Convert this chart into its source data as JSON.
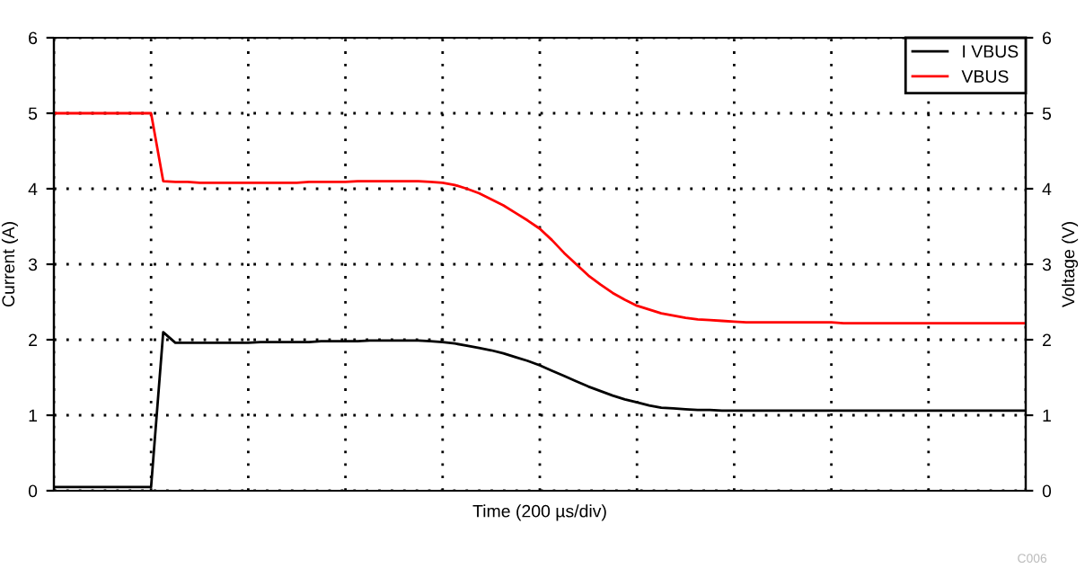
{
  "chart_data": {
    "type": "line",
    "xlabel": "Time (200 µs/div)",
    "ylabel": "Current (A)",
    "y2label": "Voltage (V)",
    "categories": [
      null,
      null,
      null,
      null,
      null,
      null,
      null,
      null,
      null,
      null,
      null,
      null,
      null,
      null,
      null,
      null,
      null,
      null,
      null,
      null,
      null,
      null,
      null,
      null,
      null,
      null,
      null,
      null,
      null,
      null,
      null,
      null,
      null,
      null,
      null,
      null,
      null,
      null,
      null,
      null,
      null,
      null,
      null,
      null,
      null,
      null,
      null,
      null,
      null,
      null,
      null,
      null,
      null,
      null,
      null,
      null,
      null,
      null,
      null,
      null,
      null,
      null,
      null,
      null,
      null,
      null,
      null,
      null,
      null,
      null,
      null,
      null,
      null,
      null,
      null,
      null,
      null,
      null,
      null,
      null,
      null
    ],
    "ylim": [
      0,
      6
    ],
    "yticks": [
      0,
      1,
      2,
      3,
      4,
      5,
      6
    ],
    "y2lim": [
      0,
      6
    ],
    "y2ticks": [
      0,
      1,
      2,
      3,
      4,
      5,
      6
    ],
    "grid": true,
    "legend": "top right",
    "line_style": "solid",
    "marker": "none",
    "annotations": [
      "C006"
    ],
    "series": [
      {
        "name": "I VBUS",
        "color": "#000000",
        "values": [
          0.05,
          0.05,
          0.05,
          0.05,
          0.05,
          0.05,
          0.05,
          0.05,
          0.05,
          2.1,
          1.96,
          1.96,
          1.96,
          1.96,
          1.96,
          1.96,
          1.96,
          1.97,
          1.97,
          1.97,
          1.97,
          1.97,
          1.98,
          1.98,
          1.98,
          1.98,
          1.99,
          1.99,
          1.99,
          1.99,
          1.99,
          1.98,
          1.97,
          1.95,
          1.92,
          1.89,
          1.86,
          1.82,
          1.77,
          1.72,
          1.66,
          1.59,
          1.52,
          1.45,
          1.38,
          1.32,
          1.26,
          1.21,
          1.17,
          1.13,
          1.1,
          1.09,
          1.08,
          1.07,
          1.07,
          1.06,
          1.06,
          1.06,
          1.06,
          1.06,
          1.06,
          1.06,
          1.06,
          1.06,
          1.06,
          1.06,
          1.06,
          1.06,
          1.06,
          1.06,
          1.06,
          1.06,
          1.06,
          1.06,
          1.06,
          1.06,
          1.06,
          1.06,
          1.06,
          1.06,
          1.06
        ]
      },
      {
        "name": "VBUS",
        "color": "#ff0000",
        "axis": "y2",
        "values": [
          5.0,
          5.0,
          5.0,
          5.0,
          5.0,
          5.0,
          5.0,
          5.0,
          5.0,
          4.1,
          4.09,
          4.09,
          4.08,
          4.08,
          4.08,
          4.08,
          4.08,
          4.08,
          4.08,
          4.08,
          4.08,
          4.09,
          4.09,
          4.09,
          4.09,
          4.1,
          4.1,
          4.1,
          4.1,
          4.1,
          4.1,
          4.09,
          4.08,
          4.05,
          4.0,
          3.94,
          3.86,
          3.78,
          3.68,
          3.58,
          3.47,
          3.32,
          3.15,
          3.0,
          2.85,
          2.73,
          2.62,
          2.53,
          2.45,
          2.4,
          2.35,
          2.32,
          2.29,
          2.27,
          2.26,
          2.25,
          2.24,
          2.23,
          2.23,
          2.23,
          2.23,
          2.23,
          2.23,
          2.23,
          2.23,
          2.22,
          2.22,
          2.22,
          2.22,
          2.22,
          2.22,
          2.22,
          2.22,
          2.22,
          2.22,
          2.22,
          2.22,
          2.22,
          2.22,
          2.22,
          2.22
        ]
      }
    ]
  }
}
